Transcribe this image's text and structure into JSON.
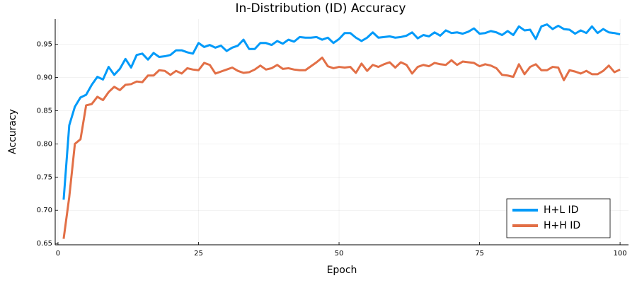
{
  "chart_data": {
    "type": "line",
    "title": "In-Distribution (ID) Accuracy",
    "x_label": "Epoch",
    "y_label": "Accuracy",
    "x": [
      1,
      2,
      3,
      4,
      5,
      6,
      7,
      8,
      9,
      10,
      11,
      12,
      13,
      14,
      15,
      16,
      17,
      18,
      19,
      20,
      21,
      22,
      23,
      24,
      25,
      26,
      27,
      28,
      29,
      30,
      31,
      32,
      33,
      34,
      35,
      36,
      37,
      38,
      39,
      40,
      41,
      42,
      43,
      44,
      45,
      46,
      47,
      48,
      49,
      50,
      51,
      52,
      53,
      54,
      55,
      56,
      57,
      58,
      59,
      60,
      61,
      62,
      63,
      64,
      65,
      66,
      67,
      68,
      69,
      70,
      71,
      72,
      73,
      74,
      75,
      76,
      77,
      78,
      79,
      80,
      81,
      82,
      83,
      84,
      85,
      86,
      87,
      88,
      89,
      90,
      91,
      92,
      93,
      94,
      95,
      96,
      97,
      98,
      99,
      100
    ],
    "series": [
      {
        "name": "H+L ID",
        "color": "#009af9",
        "values": [
          0.716,
          0.828,
          0.856,
          0.87,
          0.874,
          0.889,
          0.901,
          0.897,
          0.916,
          0.904,
          0.913,
          0.928,
          0.915,
          0.934,
          0.936,
          0.927,
          0.937,
          0.931,
          0.932,
          0.934,
          0.941,
          0.941,
          0.938,
          0.936,
          0.952,
          0.946,
          0.949,
          0.945,
          0.948,
          0.94,
          0.945,
          0.948,
          0.957,
          0.943,
          0.943,
          0.952,
          0.952,
          0.949,
          0.955,
          0.951,
          0.957,
          0.954,
          0.961,
          0.96,
          0.96,
          0.961,
          0.957,
          0.96,
          0.952,
          0.958,
          0.967,
          0.967,
          0.96,
          0.955,
          0.96,
          0.968,
          0.96,
          0.961,
          0.962,
          0.96,
          0.961,
          0.963,
          0.968,
          0.959,
          0.964,
          0.962,
          0.968,
          0.963,
          0.971,
          0.967,
          0.968,
          0.966,
          0.969,
          0.974,
          0.966,
          0.967,
          0.97,
          0.968,
          0.964,
          0.97,
          0.964,
          0.977,
          0.971,
          0.972,
          0.958,
          0.977,
          0.98,
          0.973,
          0.978,
          0.973,
          0.972,
          0.966,
          0.971,
          0.967,
          0.977,
          0.967,
          0.973,
          0.968,
          0.967,
          0.965
        ]
      },
      {
        "name": "H+H ID",
        "color": "#e26f46",
        "values": [
          0.657,
          0.72,
          0.8,
          0.807,
          0.858,
          0.86,
          0.871,
          0.866,
          0.878,
          0.886,
          0.881,
          0.889,
          0.89,
          0.894,
          0.893,
          0.903,
          0.903,
          0.911,
          0.91,
          0.904,
          0.91,
          0.906,
          0.914,
          0.912,
          0.911,
          0.922,
          0.919,
          0.906,
          0.909,
          0.912,
          0.915,
          0.91,
          0.907,
          0.908,
          0.912,
          0.918,
          0.912,
          0.914,
          0.919,
          0.913,
          0.914,
          0.912,
          0.911,
          0.911,
          0.917,
          0.923,
          0.93,
          0.917,
          0.914,
          0.916,
          0.915,
          0.916,
          0.907,
          0.921,
          0.91,
          0.919,
          0.916,
          0.92,
          0.923,
          0.915,
          0.923,
          0.919,
          0.906,
          0.916,
          0.919,
          0.917,
          0.922,
          0.92,
          0.919,
          0.926,
          0.919,
          0.924,
          0.923,
          0.922,
          0.917,
          0.92,
          0.918,
          0.914,
          0.904,
          0.903,
          0.901,
          0.92,
          0.905,
          0.916,
          0.92,
          0.911,
          0.911,
          0.916,
          0.915,
          0.896,
          0.911,
          0.909,
          0.906,
          0.91,
          0.905,
          0.905,
          0.91,
          0.918,
          0.908,
          0.912
        ]
      }
    ],
    "xlim": [
      -0.5,
      101.5
    ],
    "xticks": [
      0,
      25,
      50,
      75,
      100
    ],
    "ylim": [
      0.648,
      0.988
    ],
    "yticks": [
      0.65,
      {
        "value": 0.7,
        "label": "0.70"
      },
      0.75,
      {
        "value": 0.8,
        "label": "0.80"
      },
      0.85,
      {
        "value": 0.9,
        "label": "0.90"
      },
      0.95
    ],
    "grid": true,
    "legend": "bottom-right"
  }
}
